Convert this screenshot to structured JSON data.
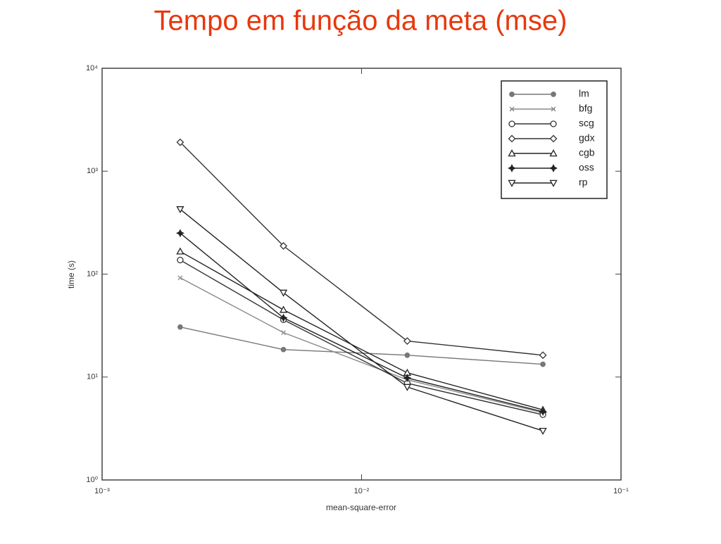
{
  "chart_data": {
    "type": "line",
    "title": "Tempo em função da meta (mse)",
    "x_label": "mean-square-error",
    "y_label": "time (s)",
    "log_x": true,
    "log_y": true,
    "legend": "upper right",
    "x": [
      0.002,
      0.005,
      0.015,
      0.05
    ],
    "xlim": [
      0.001,
      0.1
    ],
    "xticks": [
      {
        "value": 0.001,
        "label": "10⁻³"
      },
      {
        "value": 0.01,
        "label": "10⁻²"
      },
      {
        "value": 0.1,
        "label": "10⁻¹"
      }
    ],
    "ylim": [
      1,
      10000
    ],
    "yticks": [
      {
        "value": 1,
        "label": "10⁰"
      },
      {
        "value": 10,
        "label": "10¹"
      },
      {
        "value": 100,
        "label": "10²"
      },
      {
        "value": 1000,
        "label": "10³"
      },
      {
        "value": 10000,
        "label": "10⁴"
      }
    ],
    "series": [
      {
        "name": "lm",
        "color": "#777777",
        "marker": "dot",
        "values": [
          30.6,
          18.5,
          16.3,
          13.3
        ]
      },
      {
        "name": "bfg",
        "color": "#888888",
        "marker": "x",
        "values": [
          92,
          27,
          9.4,
          4.5
        ]
      },
      {
        "name": "scg",
        "color": "#333333",
        "marker": "circle",
        "values": [
          137,
          36,
          8.7,
          4.3
        ]
      },
      {
        "name": "gdx",
        "color": "#333333",
        "marker": "diamond",
        "values": [
          1910,
          188,
          22.4,
          16.3
        ]
      },
      {
        "name": "cgb",
        "color": "#222222",
        "marker": "triangle",
        "values": [
          166,
          45,
          11,
          4.8
        ]
      },
      {
        "name": "oss",
        "color": "#222222",
        "marker": "star",
        "values": [
          250,
          37.6,
          9.8,
          4.6
        ]
      },
      {
        "name": "rp",
        "color": "#222222",
        "marker": "down",
        "values": [
          427,
          66,
          8.0,
          3.0
        ]
      }
    ]
  }
}
